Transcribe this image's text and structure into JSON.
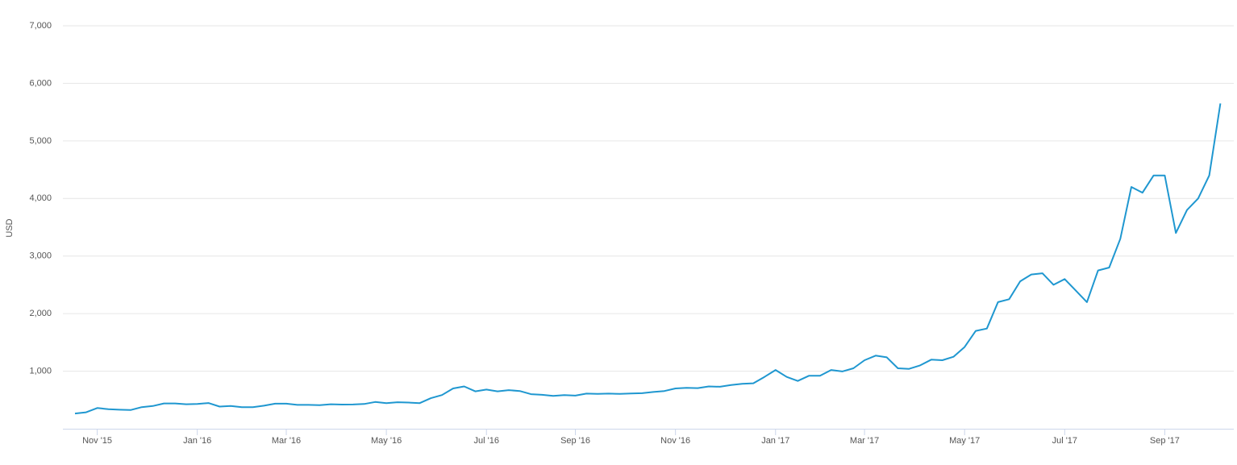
{
  "chart_data": {
    "type": "line",
    "y_label": "USD",
    "color": "#1f97d0",
    "grid": true,
    "ylim": [
      0,
      7000
    ],
    "yticks": [
      {
        "value": 1000,
        "label": "1,000"
      },
      {
        "value": 2000,
        "label": "2,000"
      },
      {
        "value": 3000,
        "label": "3,000"
      },
      {
        "value": 4000,
        "label": "4,000"
      },
      {
        "value": 5000,
        "label": "5,000"
      },
      {
        "value": 6000,
        "label": "6,000"
      },
      {
        "value": 7000,
        "label": "7,000"
      }
    ],
    "categories": [
      null,
      null,
      "Nov '15",
      null,
      null,
      null,
      null,
      null,
      null,
      null,
      null,
      "Jan '16",
      null,
      null,
      null,
      null,
      null,
      null,
      null,
      "Mar '16",
      null,
      null,
      null,
      null,
      null,
      null,
      null,
      null,
      "May '16",
      null,
      null,
      null,
      null,
      null,
      null,
      null,
      null,
      "Jul '16",
      null,
      null,
      null,
      null,
      null,
      null,
      null,
      "Sep '16",
      null,
      null,
      null,
      null,
      null,
      null,
      null,
      null,
      "Nov '16",
      null,
      null,
      null,
      null,
      null,
      null,
      null,
      null,
      "Jan '17",
      null,
      null,
      null,
      null,
      null,
      null,
      null,
      "Mar '17",
      null,
      null,
      null,
      null,
      null,
      null,
      null,
      null,
      "May '17",
      null,
      null,
      null,
      null,
      null,
      null,
      null,
      null,
      "Jul '17",
      null,
      null,
      null,
      null,
      null,
      null,
      null,
      null,
      "Sep '17",
      null,
      null,
      null,
      null,
      null
    ],
    "values": [
      265,
      285,
      360,
      340,
      330,
      325,
      375,
      395,
      440,
      440,
      425,
      430,
      447,
      385,
      395,
      375,
      375,
      400,
      435,
      435,
      415,
      415,
      410,
      425,
      420,
      422,
      430,
      465,
      445,
      460,
      455,
      445,
      530,
      585,
      700,
      735,
      650,
      680,
      650,
      670,
      655,
      600,
      590,
      570,
      585,
      575,
      610,
      605,
      610,
      605,
      612,
      617,
      638,
      655,
      700,
      710,
      705,
      735,
      730,
      760,
      780,
      790,
      900,
      1020,
      900,
      830,
      920,
      920,
      1020,
      995,
      1050,
      1190,
      1270,
      1240,
      1050,
      1040,
      1100,
      1200,
      1190,
      1250,
      1420,
      1700,
      1740,
      2200,
      2250,
      2560,
      2680,
      2700,
      2500,
      2600,
      2400,
      2200,
      2750,
      2800,
      3300,
      4200,
      4100,
      4400,
      4400,
      3400,
      3800,
      4000,
      4400,
      5650
    ]
  }
}
